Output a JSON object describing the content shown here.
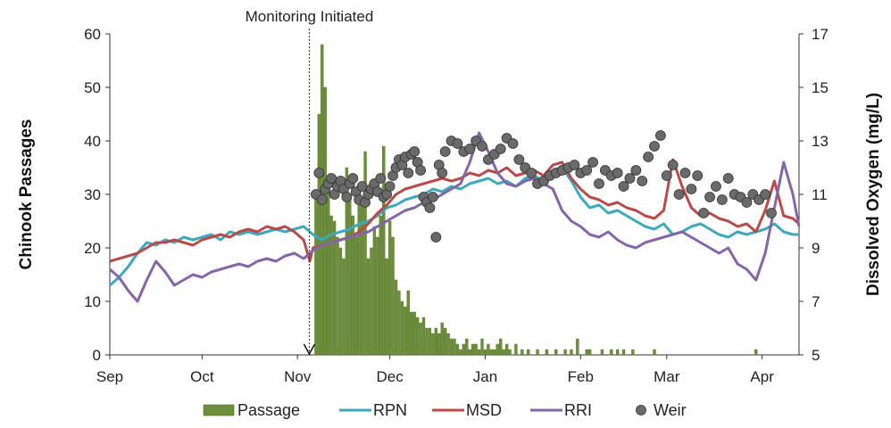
{
  "chart_data": {
    "type": "bar+line+scatter",
    "annotation": "Monitoring Initiated",
    "annotation_date_day": 66,
    "ylabel_left": "Chinook Passages",
    "ylabel_right": "Dissolved Oxygen (mg/L)",
    "xlabel": "",
    "ylim_left": [
      0,
      60
    ],
    "yticks_left": [
      "0",
      "10",
      "20",
      "30",
      "40",
      "50",
      "60"
    ],
    "ylim_right": [
      5,
      17
    ],
    "yticks_right": [
      "5",
      "7",
      "9",
      "11",
      "13",
      "15",
      "17"
    ],
    "xlim_days": [
      0,
      224
    ],
    "x_ticks": [
      {
        "label": "Sep",
        "day": 0
      },
      {
        "label": "Oct",
        "day": 30
      },
      {
        "label": "Nov",
        "day": 61
      },
      {
        "label": "Dec",
        "day": 91
      },
      {
        "label": "Jan",
        "day": 122
      },
      {
        "label": "Feb",
        "day": 153
      },
      {
        "label": "Mar",
        "day": 181
      },
      {
        "label": "Apr",
        "day": 212
      }
    ],
    "legend": [
      {
        "label": "Passage",
        "kind": "bar",
        "color": "#6d8f3a"
      },
      {
        "label": "RPN",
        "kind": "line",
        "color": "#3ea9bd"
      },
      {
        "label": "MSD",
        "kind": "line",
        "color": "#b94a4a"
      },
      {
        "label": "RRI",
        "kind": "line",
        "color": "#8466a8"
      },
      {
        "label": "Weir",
        "kind": "marker",
        "color": "#666666"
      }
    ],
    "passage": {
      "name": "Passage",
      "axis": "left",
      "color": "#6d8f3a",
      "day": [
        67,
        68,
        69,
        70,
        71,
        72,
        73,
        74,
        75,
        76,
        77,
        78,
        79,
        80,
        81,
        82,
        83,
        84,
        85,
        86,
        87,
        88,
        89,
        90,
        91,
        92,
        93,
        94,
        95,
        96,
        97,
        98,
        99,
        100,
        101,
        102,
        103,
        104,
        105,
        106,
        107,
        108,
        109,
        110,
        111,
        112,
        113,
        114,
        115,
        116,
        117,
        118,
        119,
        120,
        121,
        122,
        123,
        124,
        125,
        126,
        127,
        128,
        129,
        130,
        132,
        134,
        136,
        139,
        142,
        145,
        148,
        150,
        152,
        155,
        156,
        160,
        163,
        165,
        167,
        170,
        177,
        210
      ],
      "values": [
        30,
        45,
        58,
        50,
        32,
        26,
        25,
        22,
        20,
        18,
        35,
        30,
        26,
        22,
        30,
        28,
        38,
        18,
        20,
        24,
        22,
        26,
        39,
        18,
        25,
        22,
        14,
        12,
        10,
        9,
        12,
        8,
        8,
        7,
        6,
        7,
        5,
        5,
        4,
        5,
        4,
        6,
        5,
        4,
        3,
        3,
        2,
        1,
        2,
        3,
        1,
        2,
        2,
        1,
        3,
        1,
        2,
        1,
        1,
        2,
        3,
        1,
        2,
        1,
        2,
        1,
        1,
        1,
        1,
        1,
        1,
        1,
        3,
        1,
        1,
        1,
        1,
        1,
        1,
        1,
        1,
        1
      ]
    },
    "rpn": {
      "name": "RPN",
      "axis": "right",
      "color": "#3ea9bd",
      "day": [
        0,
        3,
        6,
        9,
        12,
        15,
        18,
        21,
        24,
        27,
        30,
        33,
        36,
        39,
        42,
        45,
        48,
        51,
        54,
        57,
        60,
        63,
        66,
        69,
        72,
        75,
        78,
        81,
        84,
        87,
        90,
        93,
        96,
        99,
        102,
        105,
        108,
        111,
        114,
        117,
        120,
        123,
        126,
        129,
        132,
        135,
        138,
        141,
        144,
        147,
        150,
        153,
        156,
        159,
        162,
        165,
        168,
        171,
        174,
        177,
        180,
        183,
        186,
        189,
        192,
        195,
        198,
        201,
        204,
        207,
        210,
        213,
        216,
        219,
        222,
        224
      ],
      "values": [
        7.6,
        7.9,
        8.3,
        8.8,
        9.2,
        9.1,
        9.3,
        9.2,
        9.4,
        9.3,
        9.4,
        9.5,
        9.3,
        9.6,
        9.5,
        9.6,
        9.5,
        9.6,
        9.7,
        9.6,
        9.7,
        9.8,
        9.5,
        9.3,
        9.5,
        9.6,
        9.7,
        9.9,
        10.0,
        10.2,
        10.5,
        10.6,
        10.8,
        10.9,
        11.0,
        11.2,
        11.1,
        11.3,
        11.2,
        11.4,
        11.5,
        11.6,
        11.4,
        11.5,
        11.3,
        11.6,
        11.7,
        11.5,
        11.9,
        12.0,
        11.5,
        10.9,
        10.5,
        10.6,
        10.3,
        10.4,
        10.2,
        10.0,
        9.8,
        9.7,
        9.9,
        9.5,
        9.6,
        9.8,
        9.9,
        9.7,
        9.5,
        9.4,
        9.6,
        9.5,
        9.6,
        9.7,
        9.9,
        9.6,
        9.5,
        9.5
      ]
    },
    "msd": {
      "name": "MSD",
      "axis": "right",
      "color": "#b94a4a",
      "day": [
        0,
        3,
        6,
        9,
        12,
        15,
        18,
        21,
        24,
        27,
        30,
        33,
        36,
        39,
        42,
        45,
        48,
        51,
        54,
        57,
        60,
        63,
        65,
        66,
        69,
        72,
        75,
        78,
        81,
        84,
        87,
        90,
        93,
        96,
        99,
        102,
        105,
        108,
        111,
        114,
        117,
        120,
        123,
        126,
        129,
        132,
        135,
        138,
        141,
        144,
        147,
        150,
        153,
        156,
        159,
        162,
        165,
        168,
        171,
        174,
        177,
        180,
        183,
        186,
        189,
        192,
        195,
        198,
        201,
        204,
        207,
        210,
        213,
        216,
        219,
        222,
        224
      ],
      "values": [
        8.5,
        8.6,
        8.7,
        8.8,
        9.0,
        9.2,
        9.2,
        9.3,
        9.2,
        9.1,
        9.3,
        9.4,
        9.5,
        9.4,
        9.6,
        9.7,
        9.6,
        9.8,
        9.7,
        9.8,
        9.6,
        9.3,
        8.5,
        9.0,
        9.1,
        9.2,
        9.3,
        9.4,
        9.6,
        9.9,
        10.3,
        10.6,
        11.0,
        11.2,
        11.3,
        11.4,
        11.5,
        11.6,
        11.5,
        11.6,
        11.8,
        11.7,
        11.9,
        11.8,
        12.0,
        11.7,
        11.8,
        11.9,
        11.7,
        12.1,
        12.2,
        11.6,
        11.2,
        10.9,
        10.8,
        10.6,
        10.7,
        10.5,
        10.4,
        10.2,
        10.1,
        10.4,
        12.3,
        11.3,
        10.5,
        10.2,
        10.3,
        10.1,
        10.0,
        9.8,
        9.9,
        9.6,
        10.4,
        11.5,
        10.2,
        10.1,
        9.9
      ]
    },
    "rri": {
      "name": "RRI",
      "axis": "right",
      "color": "#8466a8",
      "day": [
        0,
        3,
        6,
        9,
        12,
        15,
        18,
        21,
        24,
        27,
        30,
        33,
        36,
        39,
        42,
        45,
        48,
        51,
        54,
        57,
        60,
        63,
        66,
        69,
        72,
        75,
        78,
        81,
        84,
        87,
        90,
        93,
        96,
        99,
        102,
        105,
        108,
        111,
        114,
        117,
        120,
        123,
        126,
        129,
        132,
        135,
        138,
        141,
        144,
        147,
        150,
        153,
        156,
        159,
        162,
        165,
        168,
        171,
        174,
        177,
        180,
        183,
        186,
        189,
        192,
        195,
        198,
        201,
        204,
        207,
        210,
        213,
        216,
        219,
        222,
        224
      ],
      "values": [
        8.2,
        7.9,
        7.4,
        7.0,
        7.8,
        8.5,
        8.1,
        7.6,
        7.8,
        8.0,
        7.9,
        8.1,
        8.2,
        8.3,
        8.4,
        8.3,
        8.5,
        8.6,
        8.5,
        8.7,
        8.8,
        8.6,
        8.9,
        9.1,
        9.2,
        9.3,
        9.4,
        9.5,
        9.6,
        9.8,
        10.0,
        10.2,
        10.4,
        10.5,
        10.7,
        10.8,
        11.0,
        11.2,
        11.4,
        12.2,
        13.3,
        12.6,
        11.8,
        11.4,
        11.3,
        11.5,
        11.6,
        11.4,
        11.2,
        10.4,
        10.0,
        9.8,
        9.5,
        9.4,
        9.6,
        9.3,
        9.1,
        9.0,
        9.2,
        9.3,
        9.4,
        9.5,
        9.6,
        9.4,
        9.2,
        9.0,
        8.8,
        9.0,
        8.4,
        8.2,
        7.8,
        8.8,
        10.5,
        12.2,
        11.0,
        9.8
      ]
    },
    "weir": {
      "name": "Weir",
      "axis": "right",
      "color": "#666666",
      "day": [
        67,
        68,
        69,
        70,
        71,
        72,
        73,
        74,
        75,
        76,
        77,
        78,
        79,
        80,
        81,
        82,
        83,
        84,
        85,
        86,
        87,
        88,
        89,
        90,
        91,
        92,
        93,
        94,
        95,
        96,
        97,
        98,
        99,
        100,
        101,
        102,
        103,
        104,
        105,
        106,
        107,
        108,
        109,
        111,
        113,
        115,
        117,
        119,
        121,
        123,
        125,
        127,
        129,
        131,
        133,
        135,
        137,
        139,
        141,
        143,
        145,
        147,
        149,
        151,
        153,
        155,
        157,
        159,
        161,
        163,
        165,
        167,
        169,
        171,
        173,
        175,
        177,
        179,
        181,
        183,
        185,
        187,
        189,
        191,
        193,
        195,
        197,
        199,
        201,
        203,
        205,
        207,
        209,
        211,
        213,
        215
      ],
      "values": [
        11.0,
        11.8,
        10.8,
        11.2,
        11.4,
        11.6,
        11.0,
        11.3,
        11.5,
        11.2,
        10.9,
        11.4,
        11.6,
        11.1,
        10.8,
        11.3,
        10.7,
        11.0,
        11.2,
        11.4,
        11.1,
        11.6,
        10.9,
        11.0,
        11.3,
        11.7,
        12.0,
        12.3,
        12.1,
        12.4,
        11.8,
        12.5,
        12.6,
        12.2,
        11.9,
        10.9,
        10.7,
        10.5,
        10.9,
        9.4,
        12.1,
        11.8,
        12.6,
        13.0,
        12.9,
        12.6,
        12.7,
        13.0,
        12.8,
        12.3,
        12.5,
        12.7,
        13.1,
        12.9,
        12.3,
        12.0,
        11.8,
        11.4,
        11.5,
        11.7,
        11.8,
        11.9,
        12.0,
        12.1,
        11.8,
        11.9,
        12.2,
        11.4,
        11.9,
        11.7,
        11.8,
        11.3,
        11.6,
        11.9,
        11.5,
        12.4,
        12.8,
        13.2,
        11.7,
        12.1,
        11.0,
        11.8,
        11.2,
        11.7,
        10.3,
        10.9,
        11.3,
        10.8,
        11.6,
        11.0,
        10.9,
        10.7,
        11.0,
        10.8,
        11.0,
        10.3
      ]
    }
  }
}
